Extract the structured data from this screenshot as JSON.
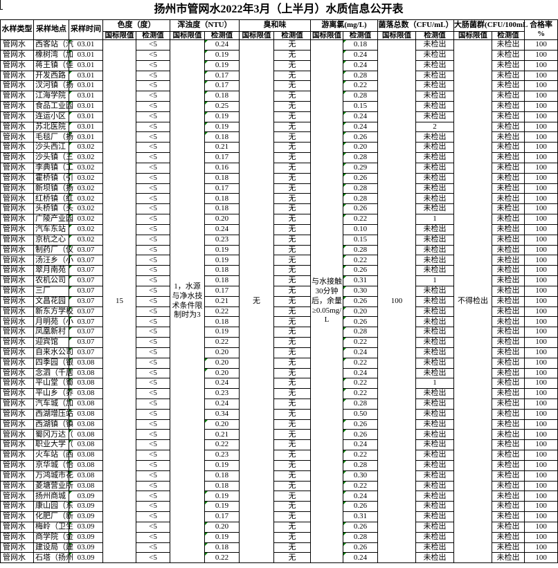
{
  "title": "扬州市管网水2022年3月（上半月）水质信息公开表",
  "colors": {
    "flag_green": "#008000",
    "grid": "#000000",
    "background": "#ffffff"
  },
  "table": {
    "headers": {
      "sample_type": "水样类型",
      "location": "采样地点",
      "time": "采样时间",
      "groups": [
        {
          "label": "色度（度）"
        },
        {
          "label": "浑浊度（NTU）"
        },
        {
          "label": "臭和味"
        },
        {
          "label": "游离氯(mg/L)"
        },
        {
          "label": "菌落总数（CFU/mL）"
        },
        {
          "label": "大肠菌群(CFU/100mL"
        }
      ],
      "limit_label": "国标限值",
      "value_label": "检测值",
      "rate_label": "合格率\n%"
    },
    "limits": {
      "color": "15",
      "turbidity": "1，水源与净水技术条件限制时为3",
      "odor": "无",
      "chlorine": "与水接触30分钟后，余量≥0.05mg/L",
      "colony": "100",
      "coliform": "不得检出"
    },
    "row_defaults": {
      "type": "管网水",
      "color": "<5",
      "odor": "无",
      "coliform": "未检出",
      "rate": "100"
    },
    "rows": [
      {
        "loc": "西客站（汽",
        "date": "03.01",
        "turb": "0.24",
        "cl": "0.18",
        "colony": "未检出",
        "tg": true,
        "cg": true
      },
      {
        "loc": "橡树湾（加",
        "date": "03.01",
        "turb": "0.19",
        "cl": "0.24",
        "colony": "未检出",
        "tg": true,
        "cg": true
      },
      {
        "loc": "蒋王镇（佳",
        "date": "03.01",
        "turb": "0.19",
        "cl": "0.24",
        "colony": "未检出",
        "tg": true,
        "cg": true
      },
      {
        "loc": "开发西路",
        "date": "03.01",
        "turb": "0.17",
        "cl": "0.28",
        "colony": "未检出",
        "tg": true,
        "cg": true
      },
      {
        "loc": "汊河镇（扬",
        "date": "03.01",
        "turb": "0.17",
        "cl": "0.22",
        "colony": "未检出",
        "tg": true,
        "cg": true
      },
      {
        "loc": "江海学院",
        "date": "03.01",
        "turb": "0.18",
        "cl": "0.28",
        "colony": "未检出",
        "tg": true,
        "cg": true
      },
      {
        "loc": "食品工业园",
        "date": "03.01",
        "turb": "0.25",
        "cl": "0.15",
        "colony": "未检出",
        "tg": true,
        "cg": false
      },
      {
        "loc": "连运小区",
        "date": "03.01",
        "turb": "0.19",
        "cl": "0.24",
        "colony": "未检出",
        "tg": true,
        "cg": true
      },
      {
        "loc": "苏北医院",
        "date": "03.01",
        "turb": "0.19",
        "cl": "0.24",
        "colony": "2",
        "tg": true,
        "cg": true
      },
      {
        "loc": "毛毯厂（扬",
        "date": "03.01",
        "turb": "0.18",
        "cl": "0.26",
        "colony": "未检出",
        "tg": true,
        "cg": true
      },
      {
        "loc": "沙头西江",
        "date": "03.02",
        "turb": "0.21",
        "cl": "0.20",
        "colony": "未检出",
        "tg": false,
        "cg": true
      },
      {
        "loc": "沙头镇（三",
        "date": "03.02",
        "turb": "0.17",
        "cl": "0.28",
        "colony": "未检出",
        "tg": false,
        "cg": true
      },
      {
        "loc": "李典镇（工",
        "date": "03.02",
        "turb": "0.16",
        "cl": "0.29",
        "colony": "未检出",
        "tg": false,
        "cg": true
      },
      {
        "loc": "霍桥镇（引",
        "date": "03.02",
        "turb": "0.18",
        "cl": "0.26",
        "colony": "未检出",
        "tg": false,
        "cg": true
      },
      {
        "loc": "新坝镇（扬",
        "date": "03.02",
        "turb": "0.17",
        "cl": "0.28",
        "colony": "未检出",
        "tg": false,
        "cg": true
      },
      {
        "loc": "红桥镇（红",
        "date": "03.02",
        "turb": "0.18",
        "cl": "0.28",
        "colony": "未检出",
        "tg": false,
        "cg": true
      },
      {
        "loc": "头桥镇（头",
        "date": "03.02",
        "turb": "0.18",
        "cl": "0.26",
        "colony": "未检出",
        "tg": false,
        "cg": true
      },
      {
        "loc": "广陵产业园",
        "date": "03.02",
        "turb": "0.20",
        "cl": "0.22",
        "colony": "1",
        "tg": false,
        "cg": true
      },
      {
        "loc": "汽车东站",
        "date": "03.02",
        "turb": "0.24",
        "cl": "0.10",
        "colony": "未检出",
        "tg": false,
        "cg": false
      },
      {
        "loc": "京杭之心",
        "date": "03.02",
        "turb": "0.23",
        "cl": "0.15",
        "colony": "未检出",
        "tg": false,
        "cg": false
      },
      {
        "loc": "制药厂（仪",
        "date": "03.07",
        "turb": "0.19",
        "cl": "0.28",
        "colony": "未检出",
        "tg": false,
        "cg": true
      },
      {
        "loc": "汤汪乡（小",
        "date": "03.07",
        "turb": "0.19",
        "cl": "0.22",
        "colony": "未检出",
        "tg": false,
        "cg": true
      },
      {
        "loc": "翠月南苑",
        "date": "03.07",
        "turb": "0.18",
        "cl": "0.26",
        "colony": "未检出",
        "tg": false,
        "cg": true
      },
      {
        "loc": "农机公司",
        "date": "03.07",
        "turb": "0.18",
        "cl": "0.31",
        "colony": "1",
        "tg": false,
        "cg": true
      },
      {
        "loc": "三厂",
        "date": "03.07",
        "turb": "0.17",
        "cl": "0.30",
        "colony": "未检出",
        "tg": false,
        "cg": true
      },
      {
        "loc": "文昌花园",
        "date": "03.07",
        "turb": "0.21",
        "cl": "0.26",
        "colony": "未检出",
        "tg": false,
        "cg": true
      },
      {
        "loc": "新东方学校",
        "date": "03.07",
        "turb": "0.22",
        "cl": "0.20",
        "colony": "未检出",
        "tg": false,
        "cg": true
      },
      {
        "loc": "月明苑（小",
        "date": "03.07",
        "turb": "0.18",
        "cl": "0.26",
        "colony": "未检出",
        "tg": false,
        "cg": true
      },
      {
        "loc": "凤凰新村",
        "date": "03.07",
        "turb": "0.19",
        "cl": "0.28",
        "colony": "未检出",
        "tg": false,
        "cg": true
      },
      {
        "loc": "迎宾馆",
        "date": "03.07",
        "turb": "0.22",
        "cl": "0.22",
        "colony": "未检出",
        "tg": false,
        "cg": true
      },
      {
        "loc": "自来水公司",
        "date": "03.07",
        "turb": "0.20",
        "cl": "0.24",
        "colony": "未检出",
        "tg": false,
        "cg": true
      },
      {
        "loc": "四季园（银",
        "date": "03.08",
        "turb": "0.20",
        "cl": "0.22",
        "colony": "未检出",
        "tg": true,
        "cg": true
      },
      {
        "loc": "念泗（千居",
        "date": "03.08",
        "turb": "0.20",
        "cl": "0.24",
        "colony": "未检出",
        "tg": true,
        "cg": false
      },
      {
        "loc": "平山堂（蜀",
        "date": "03.08",
        "turb": "0.24",
        "cl": "0.22",
        "colony": "1",
        "tg": false,
        "cg": true
      },
      {
        "loc": "平山乡（养",
        "date": "03.08",
        "turb": "0.23",
        "cl": "0.22",
        "colony": "未检出",
        "tg": false,
        "cg": true
      },
      {
        "loc": "汽车城（加",
        "date": "03.08",
        "turb": "0.24",
        "cl": "0.28",
        "colony": "未检出",
        "tg": false,
        "cg": true
      },
      {
        "loc": "西湖增压站",
        "date": "03.08",
        "turb": "0.34",
        "cl": "0.50",
        "colony": "未检出",
        "tg": false,
        "cg": false
      },
      {
        "loc": "西湖镇（镇",
        "date": "03.08",
        "turb": "0.20",
        "cl": "0.26",
        "colony": "未检出",
        "tg": true,
        "cg": true
      },
      {
        "loc": "蜀冈万达（",
        "date": "03.08",
        "turb": "0.21",
        "cl": "0.26",
        "colony": "未检出",
        "tg": false,
        "cg": true
      },
      {
        "loc": "职业大学（",
        "date": "03.08",
        "turb": "0.22",
        "cl": "0.24",
        "colony": "未检出",
        "tg": false,
        "cg": false
      },
      {
        "loc": "火车站（西",
        "date": "03.08",
        "turb": "0.23",
        "cl": "0.22",
        "colony": "未检出",
        "tg": false,
        "cg": true
      },
      {
        "loc": "京华城（怡",
        "date": "03.08",
        "turb": "0.19",
        "cl": "0.28",
        "colony": "未检出",
        "tg": false,
        "cg": true
      },
      {
        "loc": "万鸿城市花",
        "date": "03.08",
        "turb": "0.18",
        "cl": "0.30",
        "colony": "未检出",
        "tg": false,
        "cg": true
      },
      {
        "loc": "菱塘营业所",
        "date": "03.08",
        "turb": "0.18",
        "cl": "0.22",
        "colony": "未检出",
        "tg": false,
        "cg": true
      },
      {
        "loc": "扬州商城",
        "date": "03.09",
        "turb": "0.19",
        "cl": "0.24",
        "colony": "未检出",
        "tg": true,
        "cg": true
      },
      {
        "loc": "康山园（东",
        "date": "03.09",
        "turb": "0.19",
        "cl": "0.26",
        "colony": "未检出",
        "tg": true,
        "cg": true
      },
      {
        "loc": "化肥厂（新",
        "date": "03.09",
        "turb": "0.17",
        "cl": "0.31",
        "colony": "未检出",
        "tg": false,
        "cg": false
      },
      {
        "loc": "梅岭（卫生",
        "date": "03.09",
        "turb": "0.20",
        "cl": "0.26",
        "colony": "未检出",
        "tg": true,
        "cg": true
      },
      {
        "loc": "商学院（金",
        "date": "03.09",
        "turb": "0.19",
        "cl": "0.28",
        "colony": "未检出",
        "tg": true,
        "cg": true
      },
      {
        "loc": "建设局（建",
        "date": "03.09",
        "turb": "0.18",
        "cl": "0.26",
        "colony": "未检出",
        "tg": true,
        "cg": true
      },
      {
        "loc": "石塔（扬州",
        "date": "03.09",
        "turb": "0.22",
        "cl": "0.24",
        "colony": "未检出",
        "tg": true,
        "cg": true
      }
    ]
  }
}
